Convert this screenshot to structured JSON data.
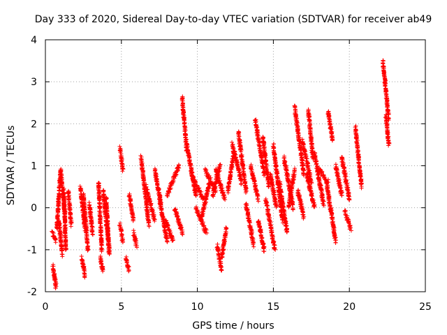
{
  "chart_data": {
    "type": "scatter",
    "title": "Day 333 of 2020, Sidereal Day-to-day VTEC variation (SDTVAR) for receiver ab49",
    "xlabel": "GPS time / hours",
    "ylabel": "SDTVAR / TECUs",
    "xlim": [
      0,
      25
    ],
    "ylim": [
      -2,
      4
    ],
    "xticks": [
      0,
      5,
      10,
      15,
      20,
      25
    ],
    "yticks": [
      -2,
      -1,
      0,
      1,
      2,
      3,
      4
    ],
    "grid": true,
    "marker": "+",
    "colors": {
      "series": "#ff0000",
      "grid": "#a0a0a0",
      "axes": "#000000"
    },
    "series": [
      {
        "name": "SDTVAR",
        "segments": [
          {
            "x": [
              0.45,
              0.7
            ],
            "y": [
              -0.6,
              -0.8
            ]
          },
          {
            "x": [
              0.5,
              0.7
            ],
            "y": [
              -1.4,
              -1.9
            ]
          },
          {
            "x": [
              0.75,
              1.0
            ],
            "y": [
              -0.5,
              0.9
            ]
          },
          {
            "x": [
              0.9,
              1.1
            ],
            "y": [
              -0.3,
              -1.1
            ]
          },
          {
            "x": [
              1.0,
              1.3
            ],
            "y": [
              0.9,
              -0.2
            ]
          },
          {
            "x": [
              1.2,
              1.35
            ],
            "y": [
              0.4,
              -1.0
            ]
          },
          {
            "x": [
              1.5,
              1.7
            ],
            "y": [
              0.4,
              -0.4
            ]
          },
          {
            "x": [
              2.3,
              2.6
            ],
            "y": [
              0.5,
              -0.5
            ]
          },
          {
            "x": [
              2.4,
              2.6
            ],
            "y": [
              -1.2,
              -1.6
            ]
          },
          {
            "x": [
              2.5,
              2.8
            ],
            "y": [
              0.3,
              -1.0
            ]
          },
          {
            "x": [
              2.9,
              3.1
            ],
            "y": [
              0.1,
              -0.6
            ]
          },
          {
            "x": [
              3.5,
              3.7
            ],
            "y": [
              0.6,
              -1.0
            ]
          },
          {
            "x": [
              3.6,
              3.8
            ],
            "y": [
              -1.2,
              -1.5
            ]
          },
          {
            "x": [
              3.8,
              4.2
            ],
            "y": [
              0.4,
              -1.0
            ]
          },
          {
            "x": [
              4.0,
              4.2
            ],
            "y": [
              0.2,
              -1.1
            ]
          },
          {
            "x": [
              4.9,
              5.1
            ],
            "y": [
              1.4,
              0.9
            ]
          },
          {
            "x": [
              4.9,
              5.1
            ],
            "y": [
              -0.4,
              -0.8
            ]
          },
          {
            "x": [
              5.3,
              5.5
            ],
            "y": [
              -1.2,
              -1.5
            ]
          },
          {
            "x": [
              5.5,
              5.8
            ],
            "y": [
              0.3,
              -0.3
            ]
          },
          {
            "x": [
              5.8,
              6.0
            ],
            "y": [
              -0.6,
              -0.9
            ]
          },
          {
            "x": [
              6.3,
              6.8
            ],
            "y": [
              1.2,
              -0.4
            ]
          },
          {
            "x": [
              6.6,
              7.2
            ],
            "y": [
              0.5,
              -0.3
            ]
          },
          {
            "x": [
              7.2,
              7.6
            ],
            "y": [
              0.9,
              0.1
            ]
          },
          {
            "x": [
              7.5,
              8.0
            ],
            "y": [
              0.2,
              -0.8
            ]
          },
          {
            "x": [
              7.9,
              8.4
            ],
            "y": [
              -0.3,
              -0.8
            ]
          },
          {
            "x": [
              8.0,
              8.8
            ],
            "y": [
              0.3,
              1.0
            ]
          },
          {
            "x": [
              8.5,
              9.0
            ],
            "y": [
              0.0,
              -0.6
            ]
          },
          {
            "x": [
              9.0,
              9.3
            ],
            "y": [
              2.6,
              1.4
            ]
          },
          {
            "x": [
              9.3,
              9.9
            ],
            "y": [
              1.5,
              0.3
            ]
          },
          {
            "x": [
              9.6,
              10.4
            ],
            "y": [
              0.8,
              0.2
            ]
          },
          {
            "x": [
              9.9,
              10.6
            ],
            "y": [
              0.0,
              -0.6
            ]
          },
          {
            "x": [
              10.3,
              10.8
            ],
            "y": [
              -0.2,
              0.6
            ]
          },
          {
            "x": [
              10.5,
              11.2
            ],
            "y": [
              0.9,
              0.4
            ]
          },
          {
            "x": [
              11.0,
              11.5
            ],
            "y": [
              0.3,
              1.0
            ]
          },
          {
            "x": [
              11.2,
              11.8
            ],
            "y": [
              0.9,
              0.2
            ]
          },
          {
            "x": [
              11.3,
              11.6
            ],
            "y": [
              -0.9,
              -1.5
            ]
          },
          {
            "x": [
              11.6,
              11.9
            ],
            "y": [
              -1.2,
              -0.5
            ]
          },
          {
            "x": [
              12.0,
              12.4
            ],
            "y": [
              0.4,
              1.3
            ]
          },
          {
            "x": [
              12.3,
              12.9
            ],
            "y": [
              1.5,
              0.6
            ]
          },
          {
            "x": [
              12.7,
              13.2
            ],
            "y": [
              1.8,
              0.4
            ]
          },
          {
            "x": [
              13.2,
              13.7
            ],
            "y": [
              0.1,
              -0.9
            ]
          },
          {
            "x": [
              13.5,
              14.0
            ],
            "y": [
              1.0,
              0.2
            ]
          },
          {
            "x": [
              13.8,
              14.4
            ],
            "y": [
              2.1,
              0.8
            ]
          },
          {
            "x": [
              14.0,
              14.4
            ],
            "y": [
              -0.3,
              -1.0
            ]
          },
          {
            "x": [
              14.3,
              14.7
            ],
            "y": [
              1.7,
              0.5
            ]
          },
          {
            "x": [
              14.5,
              15.1
            ],
            "y": [
              0.2,
              -1.0
            ]
          },
          {
            "x": [
              14.8,
              15.2
            ],
            "y": [
              0.8,
              0.0
            ]
          },
          {
            "x": [
              15.0,
              15.6
            ],
            "y": [
              1.5,
              -0.3
            ]
          },
          {
            "x": [
              15.4,
              15.9
            ],
            "y": [
              0.6,
              -0.6
            ]
          },
          {
            "x": [
              15.7,
              16.3
            ],
            "y": [
              1.2,
              0.0
            ]
          },
          {
            "x": [
              16.0,
              16.4
            ],
            "y": [
              0.0,
              0.9
            ]
          },
          {
            "x": [
              16.4,
              17.0
            ],
            "y": [
              2.4,
              0.8
            ]
          },
          {
            "x": [
              16.6,
              17.0
            ],
            "y": [
              0.4,
              -0.2
            ]
          },
          {
            "x": [
              16.9,
              17.5
            ],
            "y": [
              1.6,
              0.6
            ]
          },
          {
            "x": [
              17.2,
              17.7
            ],
            "y": [
              0.8,
              0.0
            ]
          },
          {
            "x": [
              17.3,
              17.6
            ],
            "y": [
              2.3,
              1.2
            ]
          },
          {
            "x": [
              17.7,
              18.3
            ],
            "y": [
              1.3,
              0.1
            ]
          },
          {
            "x": [
              18.0,
              18.6
            ],
            "y": [
              0.9,
              0.6
            ]
          },
          {
            "x": [
              18.5,
              19.1
            ],
            "y": [
              0.6,
              -0.8
            ]
          },
          {
            "x": [
              18.6,
              18.9
            ],
            "y": [
              2.3,
              1.6
            ]
          },
          {
            "x": [
              19.1,
              19.5
            ],
            "y": [
              1.0,
              0.3
            ]
          },
          {
            "x": [
              19.5,
              20.0
            ],
            "y": [
              1.2,
              0.2
            ]
          },
          {
            "x": [
              19.7,
              20.1
            ],
            "y": [
              -0.1,
              -0.5
            ]
          },
          {
            "x": [
              20.4,
              20.8
            ],
            "y": [
              1.9,
              0.5
            ]
          },
          {
            "x": [
              22.2,
              22.6
            ],
            "y": [
              3.5,
              2.1
            ]
          },
          {
            "x": [
              22.4,
              22.6
            ],
            "y": [
              2.2,
              1.5
            ]
          }
        ]
      }
    ]
  }
}
